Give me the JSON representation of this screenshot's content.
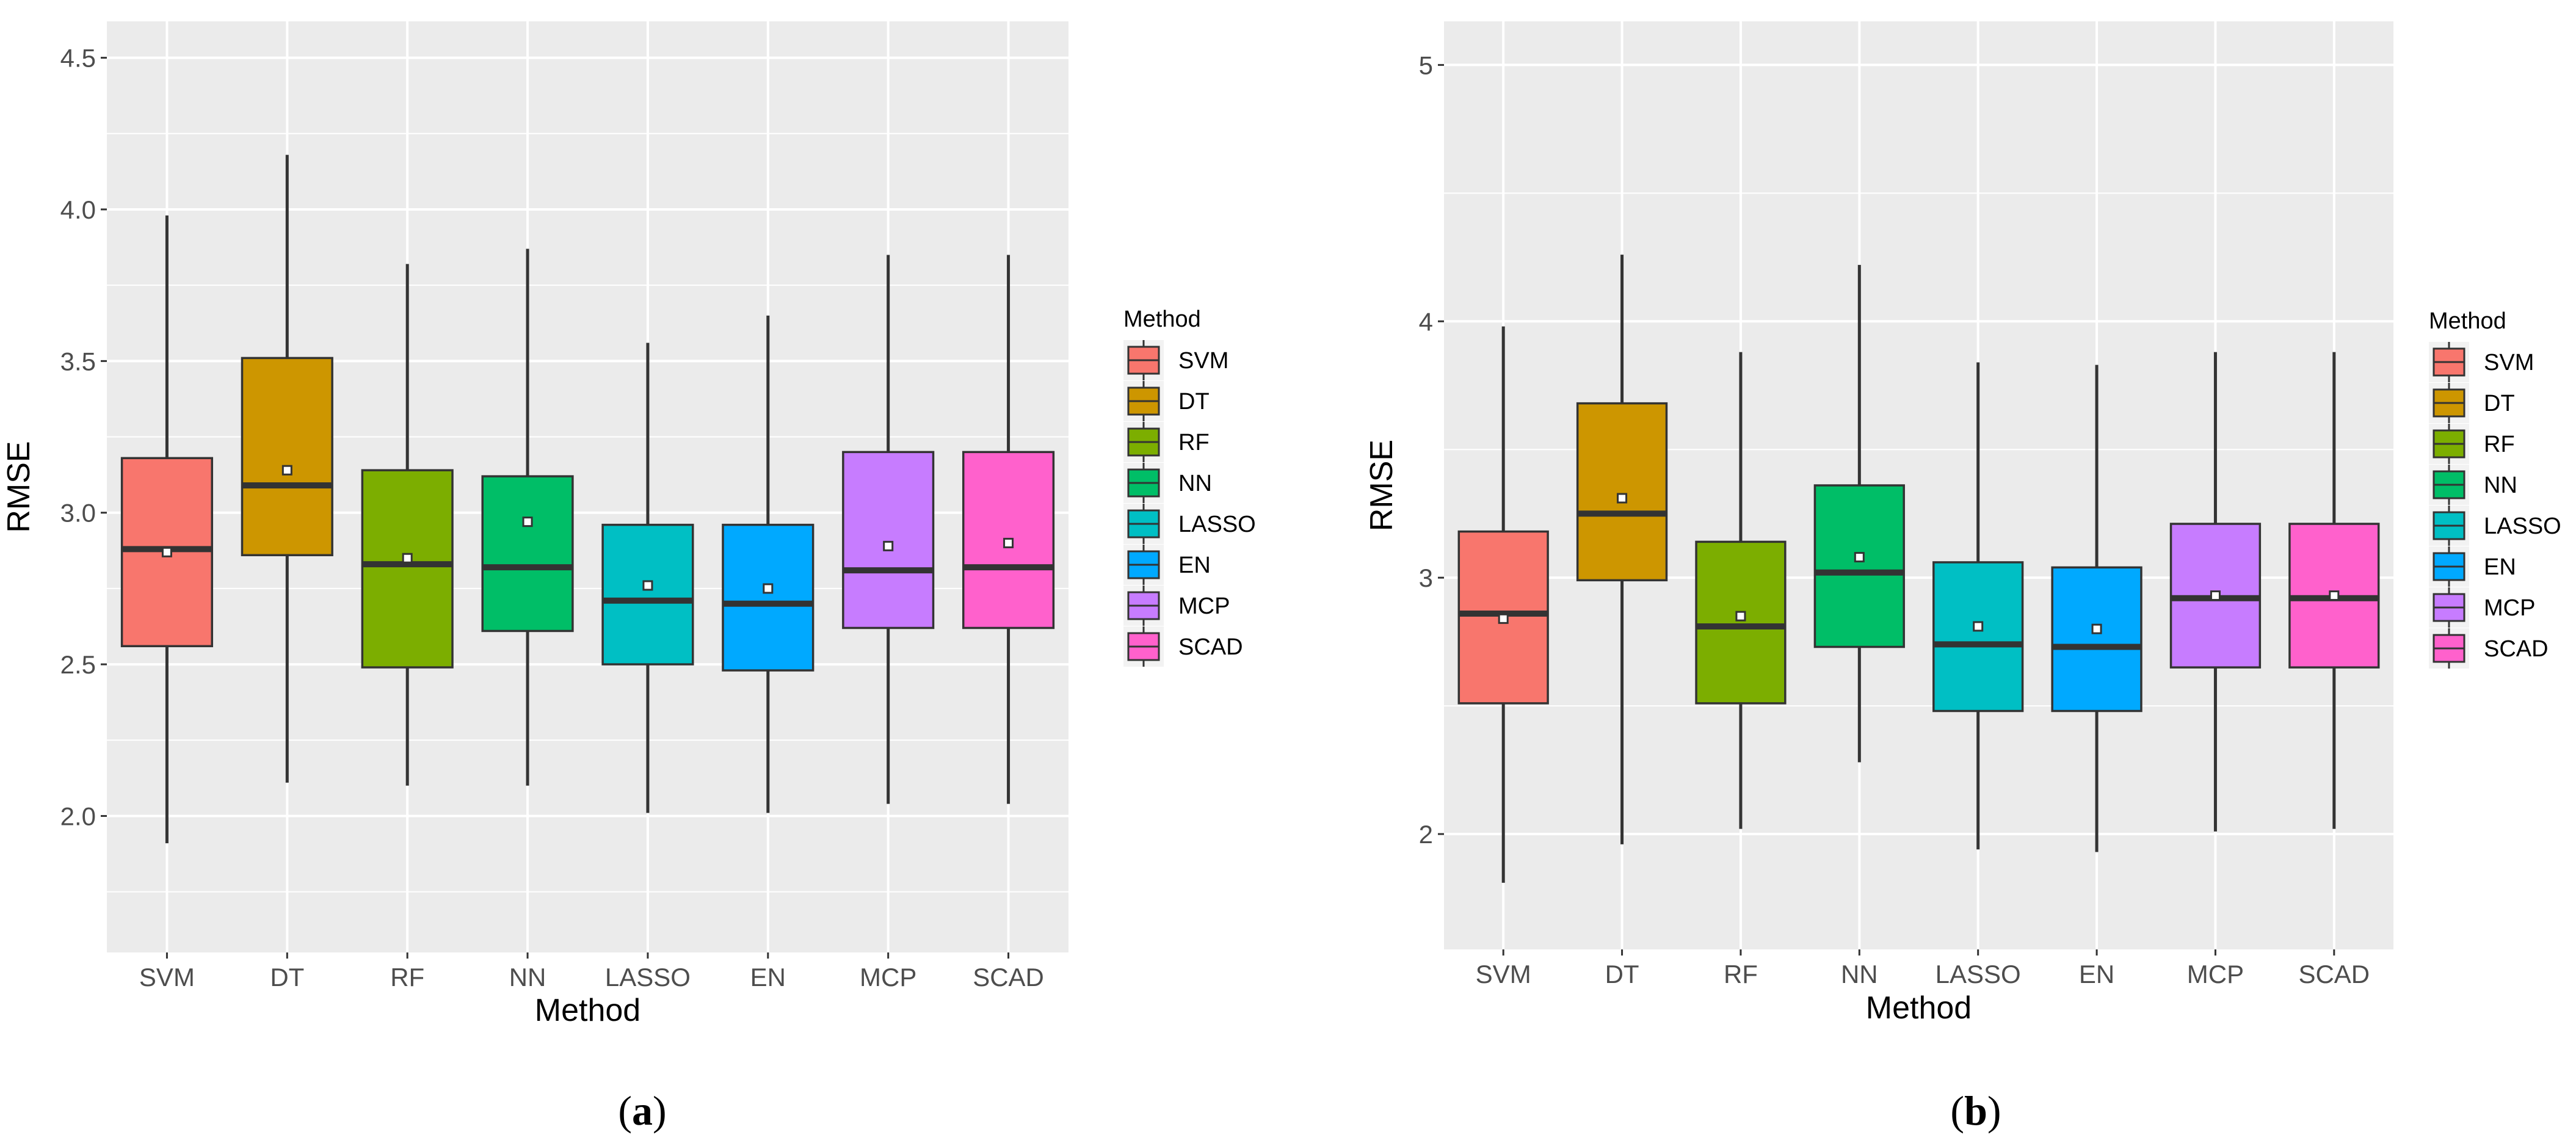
{
  "chart_data": [
    {
      "type": "box",
      "panel_label": "a",
      "xlabel": "Method",
      "ylabel": "RMSE",
      "ylim": [
        1.55,
        4.62
      ],
      "yticks": [
        2.0,
        2.5,
        3.0,
        3.5,
        4.0,
        4.5
      ],
      "ytick_labels": [
        "2.0",
        "2.5",
        "3.0",
        "3.5",
        "4.0",
        "4.5"
      ],
      "categories": [
        "SVM",
        "DT",
        "RF",
        "NN",
        "LASSO",
        "EN",
        "MCP",
        "SCAD"
      ],
      "series": [
        {
          "name": "SVM",
          "min": 1.91,
          "q1": 2.56,
          "median": 2.88,
          "q3": 3.18,
          "max": 3.98,
          "mean": 2.87
        },
        {
          "name": "DT",
          "min": 2.11,
          "q1": 2.86,
          "median": 3.09,
          "q3": 3.51,
          "max": 4.18,
          "mean": 3.14
        },
        {
          "name": "RF",
          "min": 2.1,
          "q1": 2.49,
          "median": 2.83,
          "q3": 3.14,
          "max": 3.82,
          "mean": 2.85
        },
        {
          "name": "NN",
          "min": 2.1,
          "q1": 2.61,
          "median": 2.82,
          "q3": 3.12,
          "max": 3.87,
          "mean": 2.97
        },
        {
          "name": "LASSO",
          "min": 2.01,
          "q1": 2.5,
          "median": 2.71,
          "q3": 2.96,
          "max": 3.56,
          "mean": 2.76
        },
        {
          "name": "EN",
          "min": 2.01,
          "q1": 2.48,
          "median": 2.7,
          "q3": 2.96,
          "max": 3.65,
          "mean": 2.75
        },
        {
          "name": "MCP",
          "min": 2.04,
          "q1": 2.62,
          "median": 2.81,
          "q3": 3.2,
          "max": 3.85,
          "mean": 2.89
        },
        {
          "name": "SCAD",
          "min": 2.04,
          "q1": 2.62,
          "median": 2.82,
          "q3": 3.2,
          "max": 3.85,
          "mean": 2.9
        }
      ],
      "legend": {
        "title": "Method",
        "placement": "right"
      }
    },
    {
      "type": "box",
      "panel_label": "b",
      "xlabel": "Method",
      "ylabel": "RMSE",
      "ylim": [
        1.55,
        5.17
      ],
      "yticks": [
        2,
        3,
        4,
        5
      ],
      "ytick_labels": [
        "2",
        "3",
        "4",
        "5"
      ],
      "categories": [
        "SVM",
        "DT",
        "RF",
        "NN",
        "LASSO",
        "EN",
        "MCP",
        "SCAD"
      ],
      "series": [
        {
          "name": "SVM",
          "min": 1.81,
          "q1": 2.51,
          "median": 2.86,
          "q3": 3.18,
          "max": 3.98,
          "mean": 2.84
        },
        {
          "name": "DT",
          "min": 1.96,
          "q1": 2.99,
          "median": 3.25,
          "q3": 3.68,
          "max": 4.26,
          "mean": 3.31
        },
        {
          "name": "RF",
          "min": 2.02,
          "q1": 2.51,
          "median": 2.81,
          "q3": 3.14,
          "max": 3.88,
          "mean": 2.85
        },
        {
          "name": "NN",
          "min": 2.28,
          "q1": 2.73,
          "median": 3.02,
          "q3": 3.36,
          "max": 4.22,
          "mean": 3.08
        },
        {
          "name": "LASSO",
          "min": 1.94,
          "q1": 2.48,
          "median": 2.74,
          "q3": 3.06,
          "max": 3.84,
          "mean": 2.81
        },
        {
          "name": "EN",
          "min": 1.93,
          "q1": 2.48,
          "median": 2.73,
          "q3": 3.04,
          "max": 3.83,
          "mean": 2.8
        },
        {
          "name": "MCP",
          "min": 2.01,
          "q1": 2.65,
          "median": 2.92,
          "q3": 3.21,
          "max": 3.88,
          "mean": 2.93
        },
        {
          "name": "SCAD",
          "min": 2.02,
          "q1": 2.65,
          "median": 2.92,
          "q3": 3.21,
          "max": 3.88,
          "mean": 2.93
        }
      ],
      "legend": {
        "title": "Method",
        "placement": "right"
      }
    }
  ],
  "colors": {
    "SVM": "#F8766D",
    "DT": "#CD9600",
    "RF": "#7CAE00",
    "NN": "#00BE67",
    "LASSO": "#00BFC4",
    "EN": "#00A9FF",
    "MCP": "#C77CFF",
    "SCAD": "#FF61CC"
  }
}
